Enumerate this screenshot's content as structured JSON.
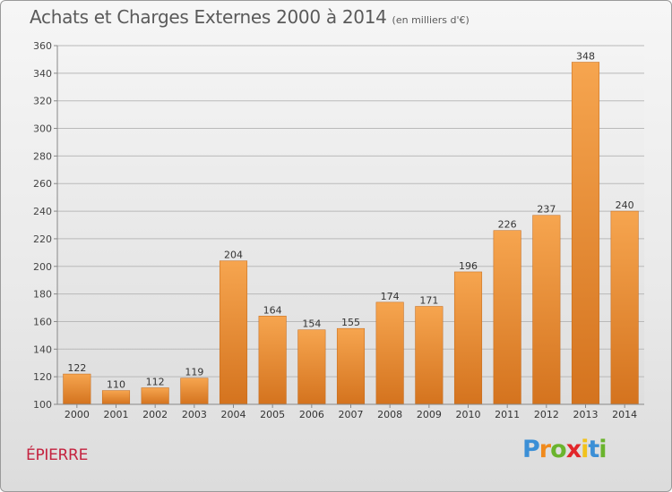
{
  "chart_data": {
    "type": "bar",
    "title": "Achats et Charges Externes 2000 à 2014",
    "subtitle": "(en milliers d'€)",
    "categories": [
      "2000",
      "2001",
      "2002",
      "2003",
      "2004",
      "2005",
      "2006",
      "2007",
      "2008",
      "2009",
      "2010",
      "2011",
      "2012",
      "2013",
      "2014"
    ],
    "values": [
      122,
      110,
      112,
      119,
      204,
      164,
      154,
      155,
      174,
      171,
      196,
      226,
      237,
      348,
      240
    ],
    "ylim": [
      100,
      360
    ],
    "yticks": [
      100,
      120,
      140,
      160,
      180,
      200,
      220,
      240,
      260,
      280,
      300,
      320,
      340,
      360
    ],
    "grid": true,
    "bar_color_top": "#f6a54f",
    "bar_color_bottom": "#d4731e"
  },
  "place_label": "ÉPIERRE",
  "logo": {
    "letters": [
      "P",
      "r",
      "o",
      "x",
      "i",
      "t",
      "i"
    ],
    "colors": [
      "#3b8fd6",
      "#f08a1c",
      "#6ab42d",
      "#e2262a",
      "#f2c21b",
      "#3b8fd6",
      "#6ab42d"
    ]
  }
}
